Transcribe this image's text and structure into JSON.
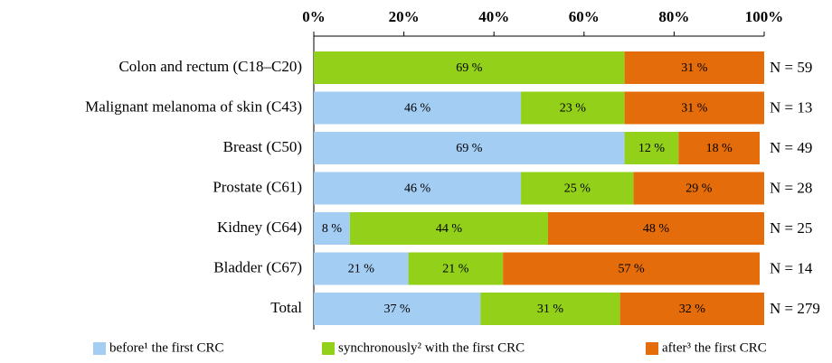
{
  "chart_data": {
    "type": "stacked_barh",
    "categories": [
      "Colon and rectum (C18–C20)",
      "Malignant melanoma of skin (C43)",
      "Breast (C50)",
      "Prostate (C61)",
      "Kidney (C64)",
      "Bladder (C67)",
      "Total"
    ],
    "series": [
      {
        "name": "before¹ the first CRC",
        "color": "#a3cdf3",
        "values": [
          0,
          46,
          69,
          46,
          8,
          21,
          37
        ],
        "value_labels": [
          null,
          "46 %",
          "69 %",
          "46 %",
          "8 %",
          "21 %",
          "37 %"
        ]
      },
      {
        "name": "synchronously² with the first CRC",
        "color": "#92d01a",
        "values": [
          69,
          23,
          12,
          25,
          44,
          21,
          31
        ],
        "value_labels": [
          "69 %",
          "23 %",
          "12 %",
          "25 %",
          "44 %",
          "21 %",
          "31 %"
        ]
      },
      {
        "name": "after³ the first CRC",
        "color": "#e46c0a",
        "values": [
          31,
          31,
          18,
          29,
          48,
          57,
          32
        ],
        "value_labels": [
          "31 %",
          "31 %",
          "18 %",
          "29 %",
          "48 %",
          "57 %",
          "32 %"
        ]
      }
    ],
    "annotations": [
      "N = 59",
      "N = 13",
      "N = 49",
      "N = 28",
      "N = 25",
      "N = 14",
      "N = 279"
    ],
    "xlim": [
      0,
      100
    ],
    "xticks": [
      {
        "value": 0,
        "label": "0%"
      },
      {
        "value": 20,
        "label": "20%"
      },
      {
        "value": 40,
        "label": "40%"
      },
      {
        "value": 60,
        "label": "60%"
      },
      {
        "value": 80,
        "label": "80%"
      },
      {
        "value": 100,
        "label": "100%"
      }
    ],
    "legend": "bottom"
  }
}
